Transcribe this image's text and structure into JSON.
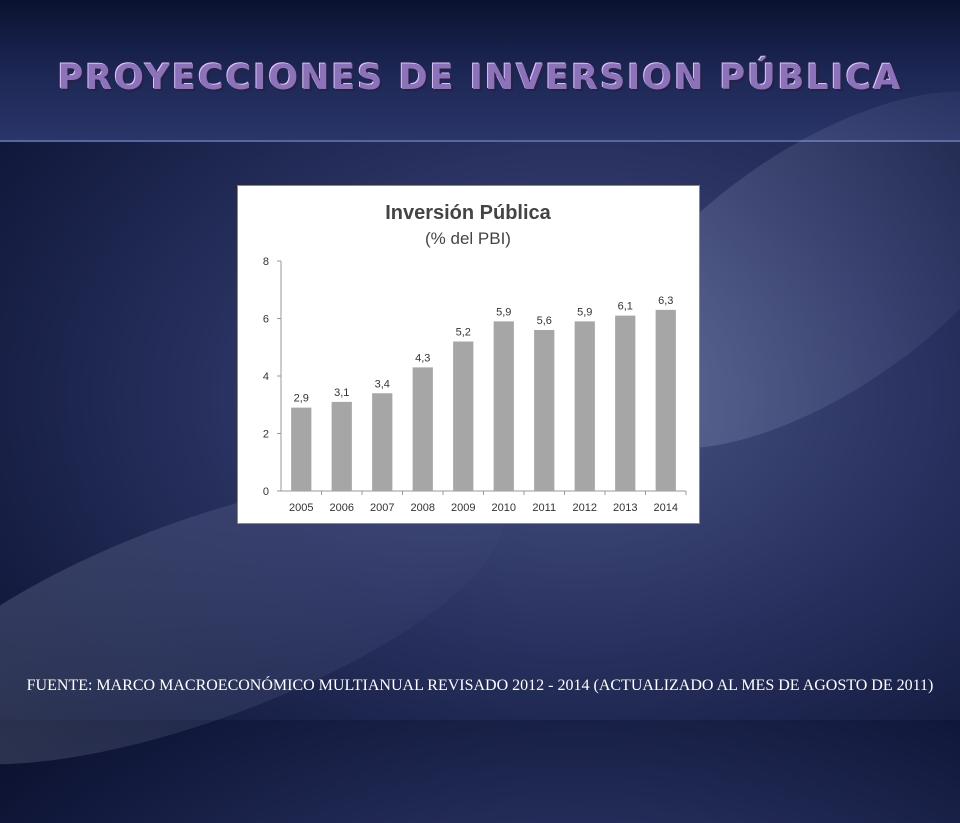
{
  "slide": {
    "title": "PROYECCIONES DE INVERSION PÚBLICA",
    "source_note": "FUENTE: MARCO MACROECONÓMICO MULTIANUAL REVISADO 2012 - 2014 (ACTUALIZADO AL MES DE AGOSTO DE 2011)"
  },
  "chart_data": {
    "type": "bar",
    "title": "Inversión Pública",
    "subtitle": "(% del PBI)",
    "categories": [
      "2005",
      "2006",
      "2007",
      "2008",
      "2009",
      "2010",
      "2011",
      "2012",
      "2013",
      "2014"
    ],
    "values": [
      2.9,
      3.1,
      3.4,
      4.3,
      5.2,
      5.9,
      5.6,
      5.9,
      6.1,
      6.3
    ],
    "data_labels": [
      "2,9",
      "3,1",
      "3,4",
      "4,3",
      "5,2",
      "5,9",
      "5,6",
      "5,9",
      "6,1",
      "6,3"
    ],
    "y_ticks": [
      "0",
      "2",
      "4",
      "6",
      "8"
    ],
    "ylim": [
      0,
      8
    ],
    "grid": false,
    "legend": "none",
    "bar_color": "#a6a6a6"
  }
}
